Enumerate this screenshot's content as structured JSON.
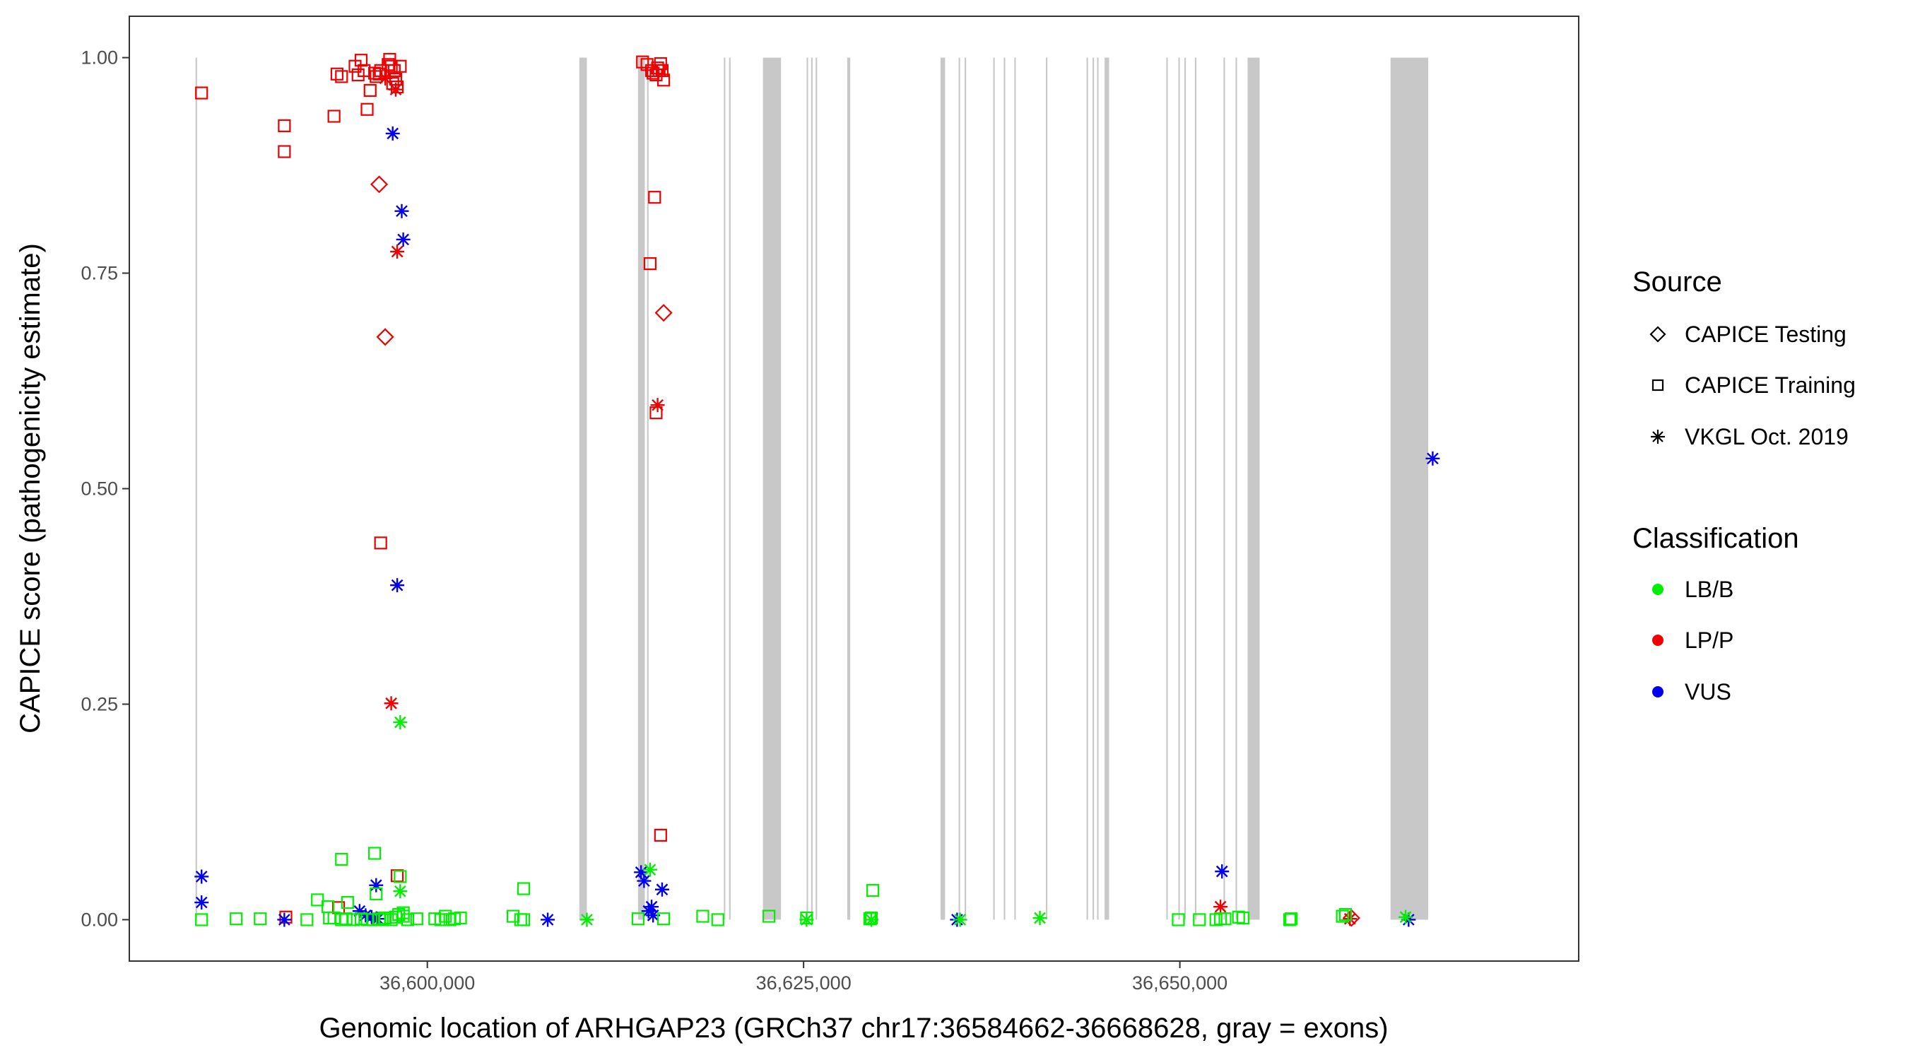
{
  "chart_data": {
    "type": "scatter",
    "xlabel": "Genomic location of ARHGAP23 (GRCh37 chr17:36584662-36668628, gray = exons)",
    "ylabel": "CAPICE score (pathogenicity estimate)",
    "xlim": [
      36580200,
      36676500
    ],
    "ylim": [
      -0.048,
      1.048
    ],
    "x_ticks": [
      36600000,
      36625000,
      36650000
    ],
    "x_tick_labels": [
      "36,600,000",
      "36,625,000",
      "36,650,000"
    ],
    "y_ticks": [
      0,
      0.25,
      0.5,
      0.75,
      1.0
    ],
    "y_tick_labels": [
      "0.00",
      "0.25",
      "0.50",
      "0.75",
      "1.00"
    ],
    "grid": false,
    "legend_position": "right",
    "exons": [
      [
        36584600,
        36584700
      ],
      [
        36610100,
        36610600
      ],
      [
        36614000,
        36614450
      ],
      [
        36614600,
        36614700
      ],
      [
        36619700,
        36619800
      ],
      [
        36620050,
        36620150
      ],
      [
        36622300,
        36623500
      ],
      [
        36625200,
        36625300
      ],
      [
        36625500,
        36625600
      ],
      [
        36625800,
        36625900
      ],
      [
        36627900,
        36628100
      ],
      [
        36634100,
        36634400
      ],
      [
        36635300,
        36635400
      ],
      [
        36635700,
        36635800
      ],
      [
        36637600,
        36637700
      ],
      [
        36638300,
        36638400
      ],
      [
        36639000,
        36639100
      ],
      [
        36641100,
        36641200
      ],
      [
        36643800,
        36643900
      ],
      [
        36644200,
        36644300
      ],
      [
        36644500,
        36644600
      ],
      [
        36645000,
        36645300
      ],
      [
        36649100,
        36649200
      ],
      [
        36649900,
        36650000
      ],
      [
        36650300,
        36650400
      ],
      [
        36651000,
        36651100
      ],
      [
        36652900,
        36653000
      ],
      [
        36653700,
        36653800
      ],
      [
        36654500,
        36655300
      ],
      [
        36664000,
        36666500
      ]
    ],
    "legend": {
      "source_title": "Source",
      "source_entries": [
        "CAPICE Testing",
        "CAPICE Training",
        "VKGL Oct. 2019"
      ],
      "class_title": "Classification",
      "class_entries": [
        "LB/B",
        "LP/P",
        "VUS"
      ]
    },
    "colors": {
      "LB/B": "#00ee00",
      "LP/P": "#ee0000",
      "VUS": "#0000ee",
      "exon": "#c8c8c8"
    },
    "series": [
      {
        "source": "CAPICE Training",
        "classification": "LP/P",
        "x": [
          36585000,
          36590500,
          36590500,
          36593800,
          36594000,
          36594300,
          36595200,
          36595400,
          36595600,
          36595800,
          36596000,
          36596200,
          36596500,
          36596600,
          36596800,
          36596900,
          36597400,
          36597500,
          36597600,
          36597700,
          36597800,
          36597900,
          36598000,
          36598200,
          36614300,
          36614600,
          36614900,
          36615000,
          36615200,
          36615300,
          36615400,
          36615500,
          36615600,
          36615700,
          36596900,
          36614800,
          36615100,
          36615200,
          36615500,
          36590600,
          36594100,
          36598000
        ],
        "y": [
          0.959,
          0.921,
          0.891,
          0.932,
          0.981,
          0.978,
          0.99,
          0.98,
          0.997,
          0.985,
          0.94,
          0.962,
          0.982,
          0.978,
          0.981,
          0.985,
          0.992,
          0.998,
          0.99,
          0.97,
          0.985,
          0.975,
          0.966,
          0.99,
          0.995,
          0.992,
          0.985,
          0.982,
          0.98,
          0.988,
          0.985,
          0.993,
          0.985,
          0.974,
          0.437,
          0.761,
          0.838,
          0.588,
          0.098,
          0.003,
          0.014,
          0.051
        ]
      },
      {
        "source": "CAPICE Testing",
        "classification": "LP/P",
        "x": [
          36596800,
          36597200,
          36615700,
          36661400
        ],
        "y": [
          0.853,
          0.676,
          0.704,
          0.002
        ]
      },
      {
        "source": "VKGL Oct. 2019",
        "classification": "LP/P",
        "x": [
          36597200,
          36597900,
          36598000,
          36597600,
          36615300,
          36652700,
          36661300
        ],
        "y": [
          0.976,
          0.963,
          0.775,
          0.251,
          0.597,
          0.015,
          0.001
        ]
      },
      {
        "source": "VKGL Oct. 2019",
        "classification": "VUS",
        "x": [
          36597700,
          36598300,
          36598400,
          36598000,
          36596600,
          36585000,
          36585000,
          36590500,
          36595500,
          36595900,
          36596300,
          36596700,
          36608000,
          36614200,
          36614400,
          36614700,
          36614900,
          36615000,
          36615600,
          36635200,
          36652800,
          36665200,
          36666800
        ],
        "y": [
          0.912,
          0.822,
          0.789,
          0.388,
          0.04,
          0.05,
          0.02,
          0.0,
          0.01,
          0.005,
          0.003,
          0.001,
          0.0,
          0.055,
          0.045,
          0.01,
          0.015,
          0.005,
          0.035,
          0.0,
          0.056,
          0.0,
          0.535
        ]
      },
      {
        "source": "VKGL Oct. 2019",
        "classification": "LB/B",
        "x": [
          36598200,
          36598200,
          36614800,
          36625200,
          36629500,
          36635400,
          36640700,
          36665000,
          36610600
        ],
        "y": [
          0.229,
          0.033,
          0.058,
          0.0,
          0.0,
          0.0,
          0.002,
          0.003,
          0.0
        ]
      },
      {
        "source": "CAPICE Training",
        "classification": "LB/B",
        "x": [
          36585000,
          36587300,
          36588900,
          36592000,
          36593500,
          36593800,
          36594300,
          36594600,
          36595100,
          36595600,
          36596000,
          36596400,
          36596800,
          36597000,
          36597200,
          36597600,
          36597900,
          36598100,
          36598400,
          36598700,
          36599300,
          36600500,
          36600900,
          36601200,
          36601500,
          36601800,
          36602200,
          36605700,
          36606200,
          36606400,
          36614000,
          36615700,
          36618300,
          36619300,
          36622700,
          36625200,
          36629400,
          36629500,
          36649900,
          36651300,
          36652400,
          36652700,
          36653000,
          36653900,
          36654200,
          36657300,
          36657400,
          36660800,
          36661000,
          36592700,
          36593400,
          36594300,
          36594700,
          36596500,
          36596600,
          36598400,
          36598200,
          36629600,
          36606400
        ],
        "y": [
          0.0,
          0.001,
          0.001,
          0.0,
          0.002,
          0.002,
          0.0,
          0.001,
          0.0,
          0.001,
          0.0,
          0.0,
          0.001,
          0.0,
          0.002,
          0.0,
          0.003,
          0.006,
          0.004,
          0.0,
          0.001,
          0.001,
          0.0,
          0.004,
          0.0,
          0.001,
          0.002,
          0.004,
          0.0,
          0.0,
          0.001,
          0.001,
          0.004,
          0.0,
          0.004,
          0.002,
          0.001,
          0.002,
          0.0,
          0.0,
          0.0,
          0.001,
          0.001,
          0.003,
          0.002,
          0.0,
          0.001,
          0.004,
          0.006,
          0.023,
          0.015,
          0.07,
          0.02,
          0.077,
          0.03,
          0.008,
          0.05,
          0.034,
          0.036
        ]
      }
    ]
  }
}
